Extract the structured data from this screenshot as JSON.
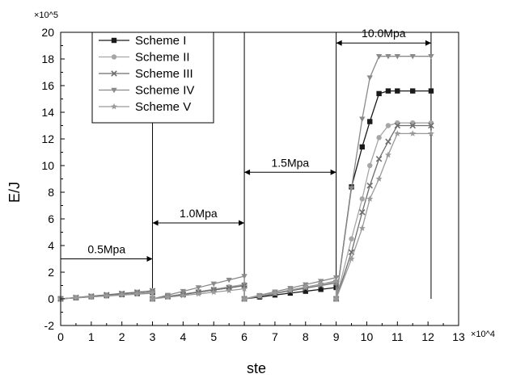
{
  "chart_data": {
    "type": "line",
    "xlabel": "ste",
    "ylabel": "E/J",
    "x_multiplier": "×10^4",
    "y_multiplier": "×10^5",
    "xlim": [
      0,
      13
    ],
    "ylim": [
      -2,
      20
    ],
    "xticks": [
      "0",
      "1",
      "2",
      "3",
      "4",
      "5",
      "6",
      "7",
      "8",
      "9",
      "10",
      "11",
      "12",
      "13"
    ],
    "yticks": [
      "-2",
      "0",
      "2",
      "4",
      "6",
      "8",
      "10",
      "12",
      "14",
      "16",
      "18",
      "20"
    ],
    "grid": false,
    "legend_position": "top-left",
    "annotations": [
      {
        "text": "0.5Mpa",
        "x_start": 0,
        "x_end": 3,
        "y": 3
      },
      {
        "text": "1.0Mpa",
        "x_start": 3,
        "x_end": 6,
        "y": 5.7
      },
      {
        "text": "1.5Mpa",
        "x_start": 6,
        "x_end": 9,
        "y": 9.5
      },
      {
        "text": "10.0Mpa",
        "x_start": 9,
        "x_end": 12.1,
        "y": 19.2
      }
    ],
    "stage_dividers_x": [
      3,
      6,
      9,
      12.1
    ],
    "series": [
      {
        "name": "Scheme I",
        "color": "#1a1a1a",
        "marker": "square",
        "x": [
          0,
          0.5,
          1,
          1.5,
          2,
          2.5,
          3,
          3,
          3.5,
          4,
          4.5,
          5,
          5.5,
          6,
          6,
          6.5,
          7,
          7.5,
          8,
          8.5,
          9,
          9,
          9.5,
          9.85,
          10.1,
          10.4,
          10.7,
          11,
          11.5,
          12.1
        ],
        "y": [
          0,
          0.08,
          0.16,
          0.24,
          0.32,
          0.4,
          0.48,
          0,
          0.17,
          0.33,
          0.5,
          0.67,
          0.83,
          1.0,
          0,
          0.14,
          0.29,
          0.43,
          0.57,
          0.71,
          0.85,
          0,
          8.4,
          11.4,
          13.3,
          15.4,
          15.6,
          15.6,
          15.6,
          15.6
        ]
      },
      {
        "name": "Scheme II",
        "color": "#a6a6a6",
        "marker": "circle",
        "x": [
          0,
          0.5,
          1,
          1.5,
          2,
          2.5,
          3,
          3,
          3.5,
          4,
          4.5,
          5,
          5.5,
          6,
          6,
          6.5,
          7,
          7.5,
          8,
          8.5,
          9,
          9,
          9.5,
          9.85,
          10.1,
          10.4,
          10.7,
          11,
          11.5,
          12.1
        ],
        "y": [
          0,
          0.1,
          0.2,
          0.3,
          0.4,
          0.5,
          0.6,
          0,
          0.18,
          0.36,
          0.54,
          0.72,
          0.9,
          1.08,
          0,
          0.22,
          0.44,
          0.66,
          0.88,
          1.1,
          1.3,
          0,
          4.5,
          7.5,
          10.0,
          12.1,
          13.0,
          13.2,
          13.2,
          13.2
        ]
      },
      {
        "name": "Scheme III",
        "color": "#6e6e6e",
        "marker": "x",
        "x": [
          0,
          0.5,
          1,
          1.5,
          2,
          2.5,
          3,
          3,
          3.5,
          4,
          4.5,
          5,
          5.5,
          6,
          6,
          6.5,
          7,
          7.5,
          8,
          8.5,
          9,
          9,
          9.5,
          9.85,
          10.1,
          10.4,
          10.7,
          11,
          11.5,
          12.1
        ],
        "y": [
          0,
          0.1,
          0.2,
          0.3,
          0.4,
          0.5,
          0.6,
          0,
          0.17,
          0.33,
          0.5,
          0.67,
          0.83,
          1.0,
          0,
          0.2,
          0.4,
          0.6,
          0.8,
          1.0,
          1.2,
          0,
          3.5,
          6.5,
          8.5,
          10.5,
          11.8,
          13.0,
          13.0,
          13.0
        ]
      },
      {
        "name": "Scheme IV",
        "color": "#8a8a8a",
        "marker": "triangle-down",
        "x": [
          0,
          0.5,
          1,
          1.5,
          2,
          2.5,
          3,
          3,
          3.5,
          4,
          4.5,
          5,
          5.5,
          6,
          6,
          6.5,
          7,
          7.5,
          8,
          8.5,
          9,
          9,
          9.5,
          9.85,
          10.1,
          10.4,
          10.7,
          11,
          11.5,
          12.1
        ],
        "y": [
          0,
          0.08,
          0.16,
          0.24,
          0.32,
          0.4,
          0.48,
          0,
          0.28,
          0.57,
          0.85,
          1.13,
          1.42,
          1.7,
          0,
          0.27,
          0.53,
          0.8,
          1.07,
          1.33,
          1.6,
          0,
          8.3,
          13.5,
          16.6,
          18.2,
          18.2,
          18.2,
          18.2,
          18.2
        ]
      },
      {
        "name": "Scheme V",
        "color": "#9a9a9a",
        "marker": "star",
        "x": [
          0,
          0.5,
          1,
          1.5,
          2,
          2.5,
          3,
          3,
          3.5,
          4,
          4.5,
          5,
          5.5,
          6,
          6,
          6.5,
          7,
          7.5,
          8,
          8.5,
          9,
          9,
          9.5,
          9.85,
          10.1,
          10.4,
          10.7,
          11,
          11.5,
          12.1
        ],
        "y": [
          0,
          0.07,
          0.14,
          0.21,
          0.28,
          0.35,
          0.42,
          0,
          0.12,
          0.25,
          0.37,
          0.5,
          0.62,
          0.75,
          0,
          0.22,
          0.44,
          0.66,
          0.88,
          1.1,
          1.35,
          0,
          3.0,
          5.3,
          7.5,
          9.0,
          10.8,
          12.4,
          12.4,
          12.4
        ]
      }
    ]
  }
}
